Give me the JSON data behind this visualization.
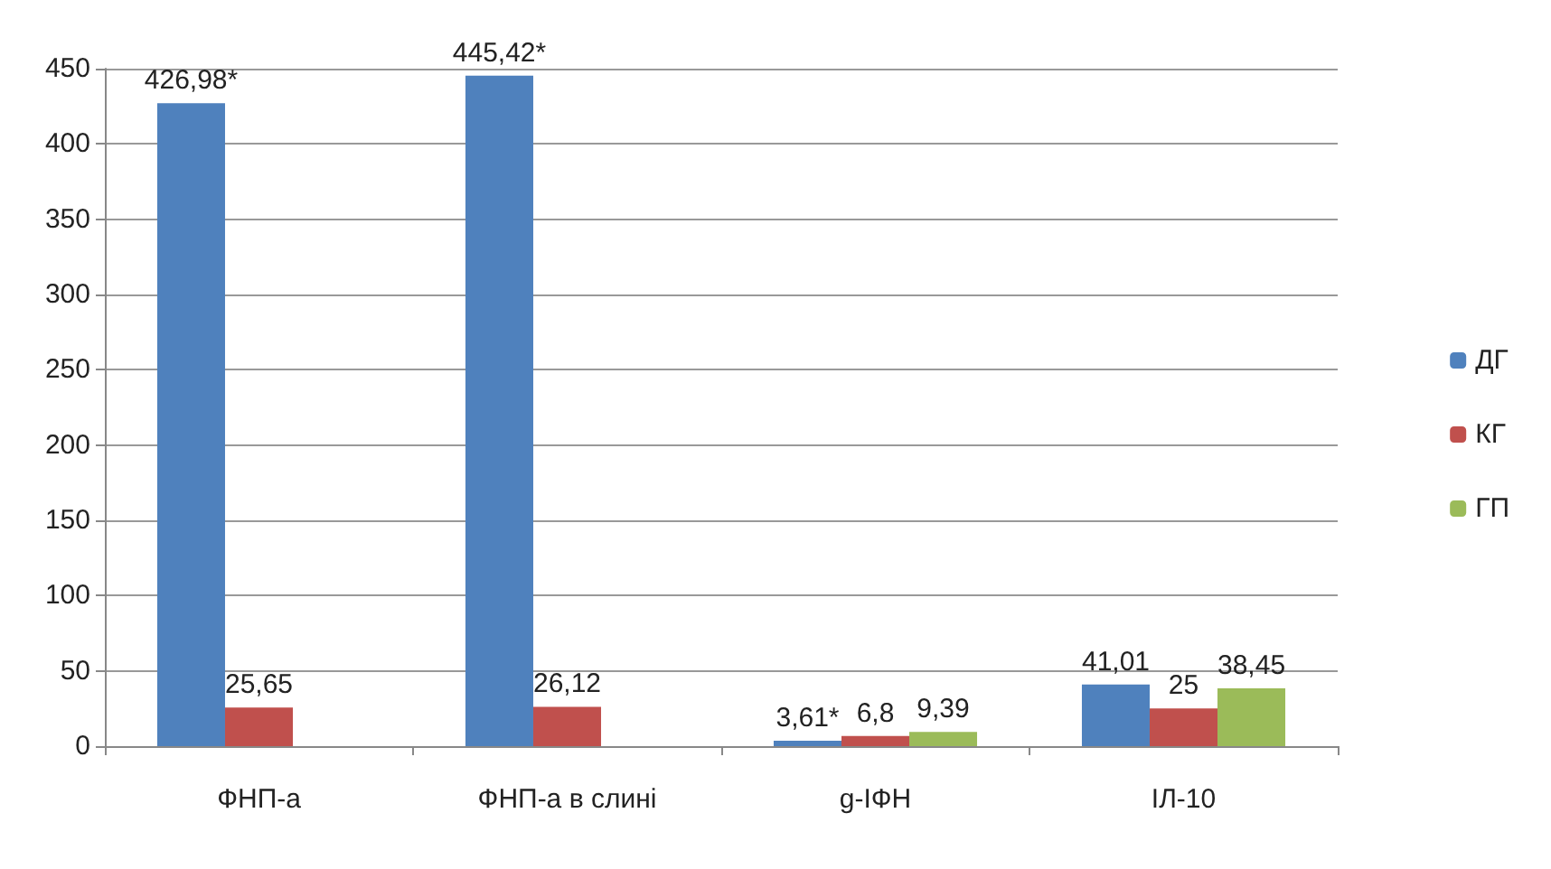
{
  "chart_data": {
    "type": "bar",
    "categories": [
      "ФНП-а",
      "ФНП-а в слині",
      "g-IФН",
      "IЛ-10"
    ],
    "series": [
      {
        "name": "ДГ",
        "color": "#4f81bd",
        "values": [
          426.98,
          445.42,
          3.61,
          41.01
        ],
        "value_labels": [
          "426,98*",
          "445,42*",
          "3,61*",
          "41,01"
        ]
      },
      {
        "name": "КГ",
        "color": "#c0504d",
        "values": [
          25.65,
          26.12,
          6.8,
          25
        ],
        "value_labels": [
          "25,65",
          "26,12",
          "6,8",
          "25"
        ]
      },
      {
        "name": "ГП",
        "color": "#9bbb59",
        "values": [
          null,
          null,
          9.39,
          38.45
        ],
        "value_labels": [
          null,
          null,
          "9,39",
          "38,45"
        ]
      }
    ],
    "ylim": [
      0,
      450
    ],
    "yticks": [
      0,
      50,
      100,
      150,
      200,
      250,
      300,
      350,
      400,
      450
    ],
    "grid": "y",
    "legend": "right"
  }
}
